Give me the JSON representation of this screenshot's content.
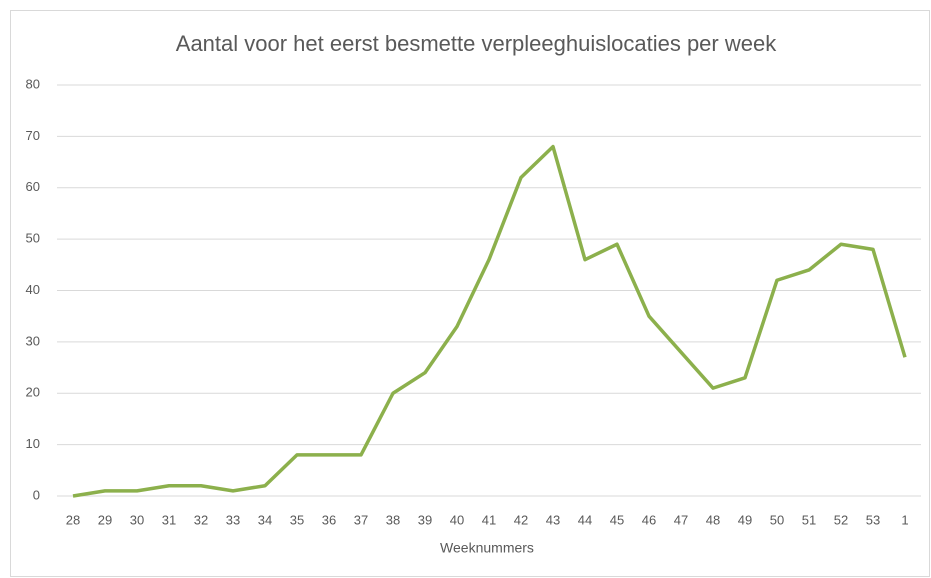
{
  "chart_data": {
    "type": "line",
    "title": "Aantal voor het eerst besmette verpleeghuislocaties per week",
    "x_label": "Weeknummers",
    "categories": [
      "28",
      "29",
      "30",
      "31",
      "32",
      "33",
      "34",
      "35",
      "36",
      "37",
      "38",
      "39",
      "40",
      "41",
      "42",
      "43",
      "44",
      "45",
      "46",
      "47",
      "48",
      "49",
      "50",
      "51",
      "52",
      "53",
      "1"
    ],
    "series": [
      {
        "name": "Aantal",
        "color": "#8cb04c",
        "values": [
          0,
          1,
          1,
          2,
          2,
          1,
          2,
          8,
          8,
          8,
          20,
          24,
          33,
          46,
          62,
          68,
          46,
          49,
          35,
          28,
          21,
          23,
          42,
          44,
          49,
          48,
          27
        ]
      }
    ],
    "ylim": [
      0,
      80
    ],
    "yticks": [
      0,
      10,
      20,
      30,
      40,
      50,
      60,
      70,
      80
    ],
    "grid": true
  }
}
